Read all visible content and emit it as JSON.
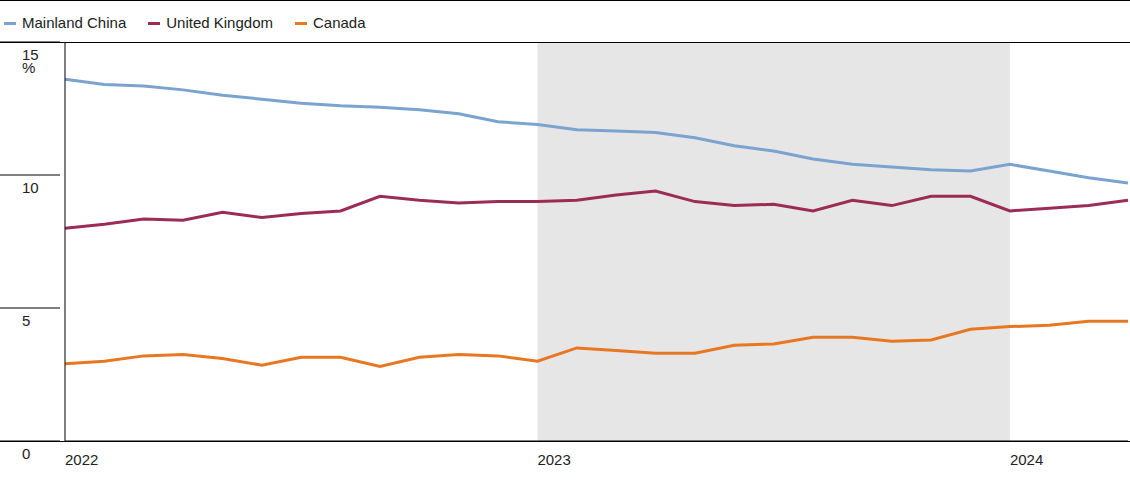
{
  "chart_data": {
    "type": "line",
    "y_label": "%",
    "categories": [
      "2022",
      null,
      null,
      null,
      null,
      null,
      null,
      null,
      null,
      null,
      null,
      null,
      "2023",
      null,
      null,
      null,
      null,
      null,
      null,
      null,
      null,
      null,
      null,
      null,
      "2024",
      null,
      null,
      null
    ],
    "series": [
      {
        "name": "Mainland China",
        "color": "#7ba3cf",
        "values": [
          13.6,
          13.4,
          13.35,
          13.2,
          13.0,
          12.85,
          12.7,
          12.6,
          12.55,
          12.45,
          12.3,
          12.0,
          11.9,
          11.7,
          11.65,
          11.6,
          11.4,
          11.1,
          10.9,
          10.6,
          10.4,
          10.3,
          10.2,
          10.15,
          10.4,
          10.15,
          9.9,
          9.7
        ]
      },
      {
        "name": "United Kingdom",
        "color": "#9b2c56",
        "values": [
          8.0,
          8.15,
          8.35,
          8.3,
          8.6,
          8.4,
          8.55,
          8.65,
          9.2,
          9.05,
          8.95,
          9.0,
          9.0,
          9.05,
          9.25,
          9.4,
          9.0,
          8.85,
          8.9,
          8.65,
          9.05,
          8.85,
          9.2,
          9.2,
          8.65,
          8.75,
          8.85,
          9.05
        ]
      },
      {
        "name": "Canada",
        "color": "#e87722",
        "values": [
          2.9,
          3.0,
          3.2,
          3.25,
          3.1,
          2.85,
          3.15,
          3.15,
          2.8,
          3.15,
          3.25,
          3.2,
          3.0,
          3.5,
          3.4,
          3.3,
          3.3,
          3.6,
          3.65,
          3.9,
          3.9,
          3.75,
          3.8,
          4.2,
          4.3,
          4.35,
          4.5,
          4.5
        ]
      }
    ],
    "ylim": [
      0,
      15
    ],
    "yticks": [
      0,
      5,
      10,
      15
    ],
    "grid": false,
    "legend": "top left"
  }
}
